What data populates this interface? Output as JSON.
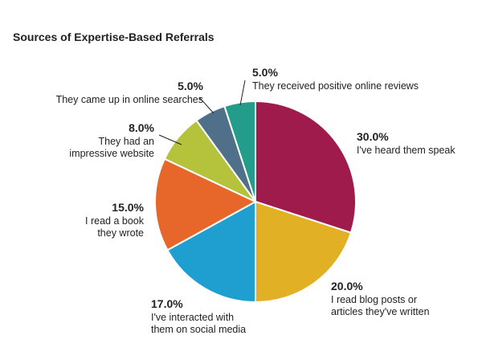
{
  "chart_data": {
    "type": "pie",
    "title": "Sources of Expertise-Based Referrals",
    "slices": [
      {
        "label_lines": [
          "I've heard them speak"
        ],
        "value": 30.0,
        "value_label": "30.0%",
        "color": "#9e1b4b"
      },
      {
        "label_lines": [
          "I read blog posts or",
          "articles they've written"
        ],
        "value": 20.0,
        "value_label": "20.0%",
        "color": "#e2b024"
      },
      {
        "label_lines": [
          "I've interacted with",
          "them on social media"
        ],
        "value": 17.0,
        "value_label": "17.0%",
        "color": "#1e9fd0"
      },
      {
        "label_lines": [
          "I read a book",
          "they wrote"
        ],
        "value": 15.0,
        "value_label": "15.0%",
        "color": "#e7672a"
      },
      {
        "label_lines": [
          "They had an",
          "impressive website"
        ],
        "value": 8.0,
        "value_label": "8.0%",
        "color": "#b5c23c"
      },
      {
        "label_lines": [
          "They came up in online searches"
        ],
        "value": 5.0,
        "value_label": "5.0%",
        "color": "#4f7088"
      },
      {
        "label_lines": [
          "They received positive online reviews"
        ],
        "value": 5.0,
        "value_label": "5.0%",
        "color": "#239c8c"
      }
    ]
  }
}
